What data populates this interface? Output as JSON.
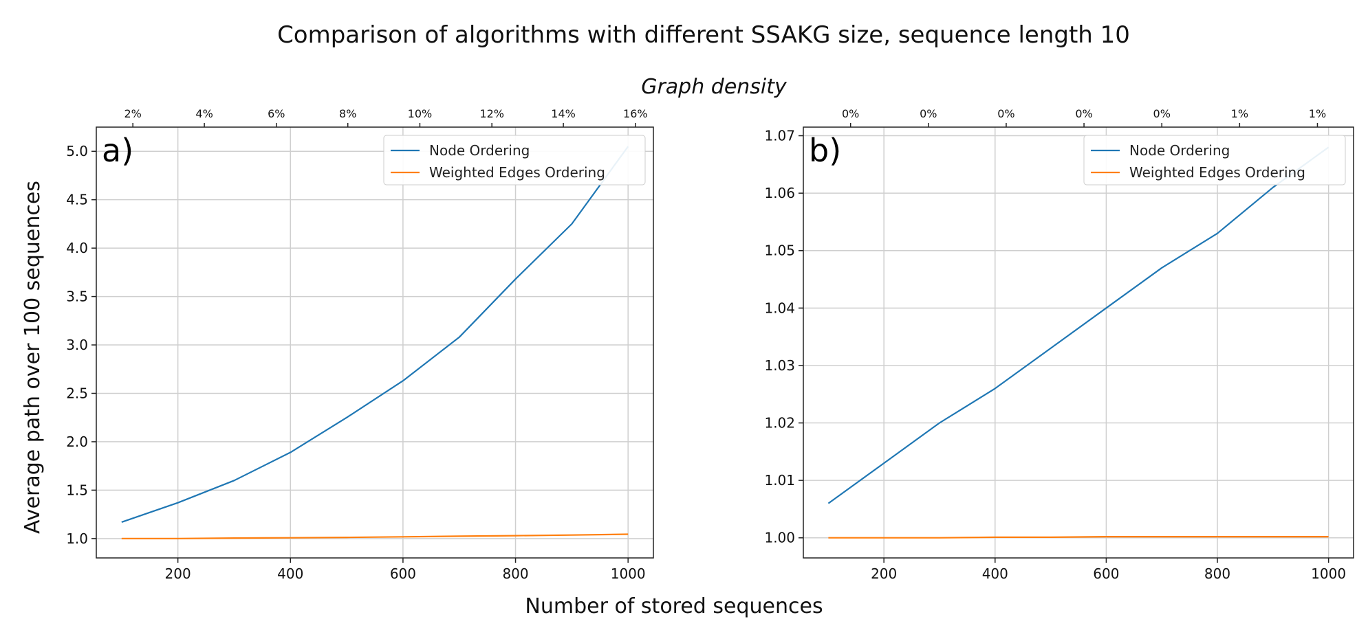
{
  "figure": {
    "title": "Comparison of algorithms with different SSAKG size, sequence length 10",
    "top_axis_label": "Graph density",
    "xlabel": "Number of stored sequences",
    "ylabel": "Average path over 100 sequences"
  },
  "colors": {
    "node": "#1f77b4",
    "weighted": "#ff7f0e",
    "grid": "#cfcfcf"
  },
  "chart_data": [
    {
      "type": "line",
      "panel_label": "a)",
      "xlim": [
        55,
        1045
      ],
      "ylim": [
        0.8,
        5.25
      ],
      "xticks": [
        200,
        400,
        600,
        800,
        1000
      ],
      "xtick_labels": [
        "200",
        "400",
        "600",
        "800",
        "1000"
      ],
      "yticks": [
        1.0,
        1.5,
        2.0,
        2.5,
        3.0,
        3.5,
        4.0,
        4.5,
        5.0
      ],
      "ytick_labels": [
        "1.0",
        "1.5",
        "2.0",
        "2.5",
        "3.0",
        "3.5",
        "4.0",
        "4.5",
        "5.0"
      ],
      "top_ticks": [
        120,
        247,
        375,
        502,
        630,
        758,
        885,
        1013
      ],
      "top_tick_labels": [
        "2%",
        "4%",
        "6%",
        "8%",
        "10%",
        "12%",
        "14%",
        "16%"
      ],
      "legend": [
        "Node Ordering",
        "Weighted Edges Ordering"
      ],
      "legend_loc": "upper right",
      "x": [
        100,
        200,
        300,
        400,
        500,
        600,
        700,
        800,
        900,
        1000
      ],
      "series": [
        {
          "name": "Node Ordering",
          "values": [
            1.17,
            1.37,
            1.6,
            1.89,
            2.25,
            2.63,
            3.08,
            3.68,
            4.25,
            5.05
          ]
        },
        {
          "name": "Weighted Edges Ordering",
          "values": [
            1.0,
            1.0,
            1.005,
            1.008,
            1.012,
            1.018,
            1.024,
            1.03,
            1.036,
            1.045
          ]
        }
      ]
    },
    {
      "type": "line",
      "panel_label": "b)",
      "xlim": [
        55,
        1045
      ],
      "ylim": [
        0.9965,
        1.0715
      ],
      "xticks": [
        200,
        400,
        600,
        800,
        1000
      ],
      "xtick_labels": [
        "200",
        "400",
        "600",
        "800",
        "1000"
      ],
      "yticks": [
        1.0,
        1.01,
        1.02,
        1.03,
        1.04,
        1.05,
        1.06,
        1.07
      ],
      "ytick_labels": [
        "1.00",
        "1.01",
        "1.02",
        "1.03",
        "1.04",
        "1.05",
        "1.06",
        "1.07"
      ],
      "top_ticks": [
        140,
        280,
        420,
        560,
        700,
        840,
        980
      ],
      "top_tick_labels": [
        "0%",
        "0%",
        "0%",
        "0%",
        "0%",
        "1%",
        "1%"
      ],
      "legend": [
        "Node Ordering",
        "Weighted Edges Ordering"
      ],
      "legend_loc": "upper right",
      "x": [
        100,
        200,
        300,
        400,
        500,
        600,
        700,
        800,
        900,
        1000
      ],
      "series": [
        {
          "name": "Node Ordering",
          "values": [
            1.006,
            1.013,
            1.02,
            1.026,
            1.033,
            1.04,
            1.047,
            1.053,
            1.061,
            1.068
          ]
        },
        {
          "name": "Weighted Edges Ordering",
          "values": [
            1.0,
            1.0,
            1.0,
            1.0001,
            1.0001,
            1.0002,
            1.0002,
            1.0002,
            1.0002,
            1.0002
          ]
        }
      ]
    }
  ]
}
